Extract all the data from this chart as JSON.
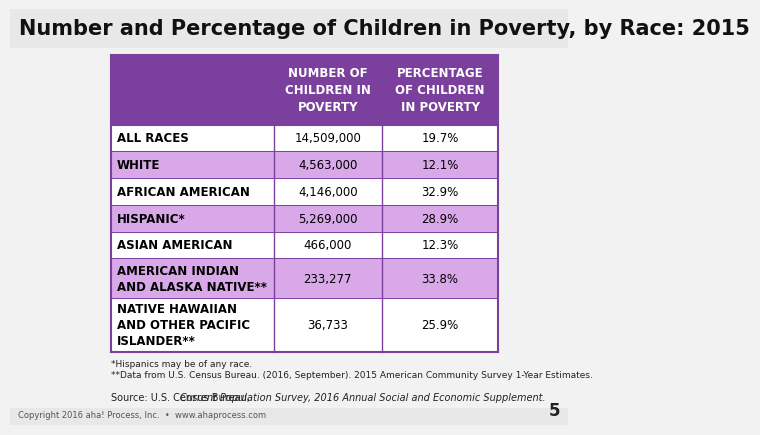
{
  "title": "Number and Percentage of Children in Poverty, by Race: 2015",
  "title_fontsize": 15,
  "bg_color": "#f2f2f2",
  "header_bg": "#7B3F9E",
  "header_text_color": "#ffffff",
  "header_col1": "NUMBER OF\nCHILDREN IN\nPOVERTY",
  "header_col2": "PERCENTAGE\nOF CHILDREN\nIN POVERTY",
  "row_odd_bg": "#ffffff",
  "row_even_bg": "#d9a8e8",
  "rows": [
    {
      "label": "ALL RACES",
      "col1": "14,509,000",
      "col2": "19.7%",
      "even": false
    },
    {
      "label": "WHITE",
      "col1": "4,563,000",
      "col2": "12.1%",
      "even": true
    },
    {
      "label": "AFRICAN AMERICAN",
      "col1": "4,146,000",
      "col2": "32.9%",
      "even": false
    },
    {
      "label": "HISPANIC*",
      "col1": "5,269,000",
      "col2": "28.9%",
      "even": true
    },
    {
      "label": "ASIAN AMERICAN",
      "col1": "466,000",
      "col2": "12.3%",
      "even": false
    },
    {
      "label": "AMERICAN INDIAN\nAND ALASKA NATIVE**",
      "col1": "233,277",
      "col2": "33.8%",
      "even": true
    },
    {
      "label": "NATIVE HAWAIIAN\nAND OTHER PACIFIC\nISLANDER**",
      "col1": "36,733",
      "col2": "25.9%",
      "even": false
    }
  ],
  "footnote1": "*Hispanics may be of any race.",
  "footnote2": "**Data from U.S. Census Bureau. (2016, September). 2015 American Community Survey 1-Year Estimates.",
  "source_normal": "Source: U.S. Census Bureau, ",
  "source_italic": "Current Population Survey, 2016 Annual Social and Economic Supplement.",
  "copyright": "Copyright 2016 aha! Process, Inc.  •  www.ahaprocess.com",
  "page_num": "5",
  "border_color": "#7B3F9E",
  "row_text_color": "#000000",
  "row_fontsize": 8.5,
  "header_fontsize": 8.5,
  "title_color": "#111111"
}
